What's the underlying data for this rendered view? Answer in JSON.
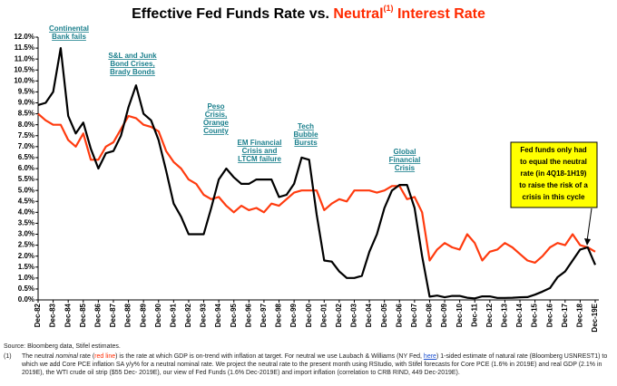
{
  "chart_data": {
    "type": "line",
    "title": {
      "start": "Effective Fed Funds Rate vs.",
      "highlight": "Neutral",
      "note_ref": "(1)",
      "end": "Interest Rate"
    },
    "categories": [
      "Dec-82",
      null,
      "Dec-83",
      null,
      "Dec-84",
      null,
      "Dec-85",
      null,
      "Dec-86",
      null,
      "Dec-87",
      null,
      "Dec-88",
      null,
      "Dec-89",
      null,
      "Dec-90",
      null,
      "Dec-91",
      null,
      "Dec-92",
      null,
      "Dec-93",
      null,
      "Dec-94",
      null,
      "Dec-95",
      null,
      "Dec-96",
      null,
      "Dec-97",
      null,
      "Dec-98",
      null,
      "Dec-99",
      null,
      "Dec-00",
      null,
      "Dec-01",
      null,
      "Dec-02",
      null,
      "Dec-03",
      null,
      "Dec-04",
      null,
      "Dec-05",
      null,
      "Dec-06",
      null,
      "Dec-07",
      null,
      "Dec-08",
      null,
      "Dec-09",
      null,
      "Dec-10",
      null,
      "Dec-11",
      null,
      "Dec-12",
      null,
      "Dec-13",
      null,
      "Dec-14",
      null,
      "Dec-15",
      null,
      "Dec-16",
      null,
      "Dec-17",
      null,
      "Dec-18",
      null,
      "Dec-19E"
    ],
    "series": [
      {
        "color": "#ff3b0f",
        "values": [
          8.5,
          8.2,
          8.0,
          8.0,
          7.3,
          7.0,
          7.6,
          6.4,
          6.4,
          7.0,
          7.2,
          7.8,
          8.4,
          8.3,
          8.0,
          7.9,
          7.7,
          6.8,
          6.3,
          6.0,
          5.5,
          5.3,
          4.8,
          4.6,
          4.7,
          4.3,
          4.0,
          4.3,
          4.1,
          4.2,
          4.0,
          4.4,
          4.3,
          4.6,
          4.9,
          5.0,
          5.0,
          5.0,
          4.1,
          4.4,
          4.6,
          4.5,
          5.0,
          5.0,
          5.0,
          4.9,
          5.0,
          5.2,
          5.2,
          4.6,
          4.7,
          4.0,
          1.8,
          2.3,
          2.6,
          2.4,
          2.3,
          3.0,
          2.6,
          1.8,
          2.2,
          2.3,
          2.6,
          2.4,
          2.1,
          1.8,
          1.7,
          2.0,
          2.4,
          2.6,
          2.5,
          3.0,
          2.5,
          2.4,
          2.2
        ]
      },
      {
        "color": "#000000",
        "values": [
          8.9,
          9.0,
          9.5,
          11.5,
          8.4,
          7.6,
          8.1,
          6.9,
          6.0,
          6.7,
          6.8,
          7.5,
          8.8,
          9.8,
          8.5,
          8.2,
          7.3,
          5.9,
          4.4,
          3.8,
          3.0,
          3.0,
          3.0,
          4.2,
          5.5,
          6.0,
          5.6,
          5.3,
          5.3,
          5.5,
          5.5,
          5.5,
          4.7,
          4.8,
          5.3,
          6.5,
          6.4,
          3.9,
          1.8,
          1.75,
          1.3,
          1.0,
          1.0,
          1.1,
          2.2,
          3.0,
          4.2,
          5.0,
          5.25,
          5.25,
          4.2,
          2.0,
          0.15,
          0.2,
          0.12,
          0.18,
          0.18,
          0.1,
          0.07,
          0.16,
          0.16,
          0.09,
          0.09,
          0.1,
          0.12,
          0.13,
          0.24,
          0.38,
          0.54,
          1.04,
          1.3,
          1.8,
          2.3,
          2.4,
          1.6
        ]
      }
    ],
    "ylim": [
      0,
      12
    ],
    "yticks": [
      {
        "value": 0,
        "label": "0.0%"
      },
      {
        "value": 0.5,
        "label": "0.5%"
      },
      {
        "value": 1,
        "label": "1.0%"
      },
      {
        "value": 1.5,
        "label": "1.5%"
      },
      {
        "value": 2,
        "label": "2.0%"
      },
      {
        "value": 2.5,
        "label": "2.5%"
      },
      {
        "value": 3,
        "label": "3.0%"
      },
      {
        "value": 3.5,
        "label": "3.5%"
      },
      {
        "value": 4,
        "label": "4.0%"
      },
      {
        "value": 4.5,
        "label": "4.5%"
      },
      {
        "value": 5,
        "label": "5.0%"
      },
      {
        "value": 5.5,
        "label": "5.5%"
      },
      {
        "value": 6,
        "label": "6.0%"
      },
      {
        "value": 6.5,
        "label": "6.5%"
      },
      {
        "value": 7,
        "label": "7.0%"
      },
      {
        "value": 7.5,
        "label": "7.5%"
      },
      {
        "value": 8,
        "label": "8.0%"
      },
      {
        "value": 8.5,
        "label": "8.5%"
      },
      {
        "value": 9,
        "label": "9.0%"
      },
      {
        "value": 9.5,
        "label": "9.5%"
      },
      {
        "value": 10,
        "label": "10.0%"
      },
      {
        "value": 10.5,
        "label": "10.5%"
      },
      {
        "value": 11,
        "label": "11.0%"
      },
      {
        "value": 11.5,
        "label": "11.5%"
      },
      {
        "value": 12,
        "label": "12.0%"
      }
    ],
    "grid": false,
    "annotations": [
      {
        "lines": [
          "Continental",
          "Bank fails"
        ]
      },
      {
        "lines": [
          "S&L and Junk",
          "Bond Crises,",
          "Brady Bonds"
        ]
      },
      {
        "lines": [
          "Peso",
          "Crisis,",
          "Orange",
          "County"
        ]
      },
      {
        "lines": [
          "EM Financial",
          "Crisis and",
          "LTCM failure"
        ]
      },
      {
        "lines": [
          "Tech",
          "Bubble",
          "Bursts"
        ]
      },
      {
        "lines": [
          "Global",
          "Financial",
          "Crisis"
        ]
      }
    ],
    "callout": {
      "lines": [
        "Fed funds only had",
        "to equal the neutral",
        "rate (in 4Q18-1H19)",
        "to raise the risk of a",
        "crisis in this cycle"
      ]
    }
  },
  "source": "Source: Bloomberg data, Stifel estimates.",
  "footnote": {
    "marker": "(1)",
    "parts": [
      "The neutral ",
      "nominal",
      " rate (",
      "red line",
      ") is the rate at which GDP is on-trend with inflation at target. For neutral we use Laubach & Williams (NY Fed, ",
      "here",
      ") 1-sided estimate of natural rate (Bloomberg USNREST1) to which we add Core PCE inflation SA y/y% for a neutral nominal rate. We project the neutral rate to the present month using RStudio, with Stifel forecasts for Core PCE (1.6% in 2019E) and real GDP (2.1% in 2019E), the WTI crude oil strip ($55 Dec- 2019E), our view of Fed Funds (1.6% Dec-2019E) and import inflation (correlation to CRB RIND, 449 Dec-2019E)."
    ]
  }
}
